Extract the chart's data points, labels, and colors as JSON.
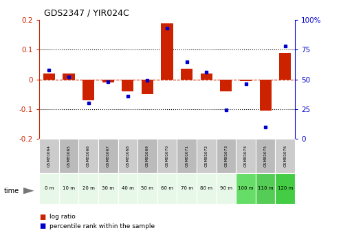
{
  "title": "GDS2347 / YIR024C",
  "samples": [
    "GSM81064",
    "GSM81065",
    "GSM81066",
    "GSM81067",
    "GSM81068",
    "GSM81069",
    "GSM81070",
    "GSM81071",
    "GSM81072",
    "GSM81073",
    "GSM81074",
    "GSM81075",
    "GSM81076"
  ],
  "time_labels": [
    "0 m",
    "10 m",
    "20 m",
    "30 m",
    "40 m",
    "50 m",
    "60 m",
    "70 m",
    "80 m",
    "90 m",
    "100 m",
    "110 m",
    "120 m"
  ],
  "log_ratio": [
    0.02,
    0.02,
    -0.07,
    -0.01,
    -0.04,
    -0.05,
    0.19,
    0.035,
    0.02,
    -0.04,
    -0.005,
    -0.105,
    0.09
  ],
  "percentile": [
    58,
    52,
    30,
    48,
    36,
    49,
    93,
    65,
    56,
    24,
    46,
    10,
    78
  ],
  "bar_color": "#cc2200",
  "dot_color": "#0000cc",
  "ylim": [
    -0.2,
    0.2
  ],
  "y2lim": [
    0,
    100
  ],
  "yticks": [
    -0.2,
    -0.1,
    0.0,
    0.1,
    0.2
  ],
  "y2ticks": [
    0,
    25,
    50,
    75,
    100
  ],
  "y2ticklabels": [
    "0",
    "25",
    "50",
    "75",
    "100%"
  ],
  "ytick_labels": [
    "-0.2",
    "-0.1",
    "0",
    "0.1",
    "0.2"
  ],
  "hline_color": "#cc2200",
  "grid_color": "black",
  "sample_bg_even": "#cccccc",
  "sample_bg_odd": "#bbbbbb",
  "time_bg_light": "#e0f5e0",
  "time_bg_dark": "#66cc66",
  "green_threshold": 10
}
